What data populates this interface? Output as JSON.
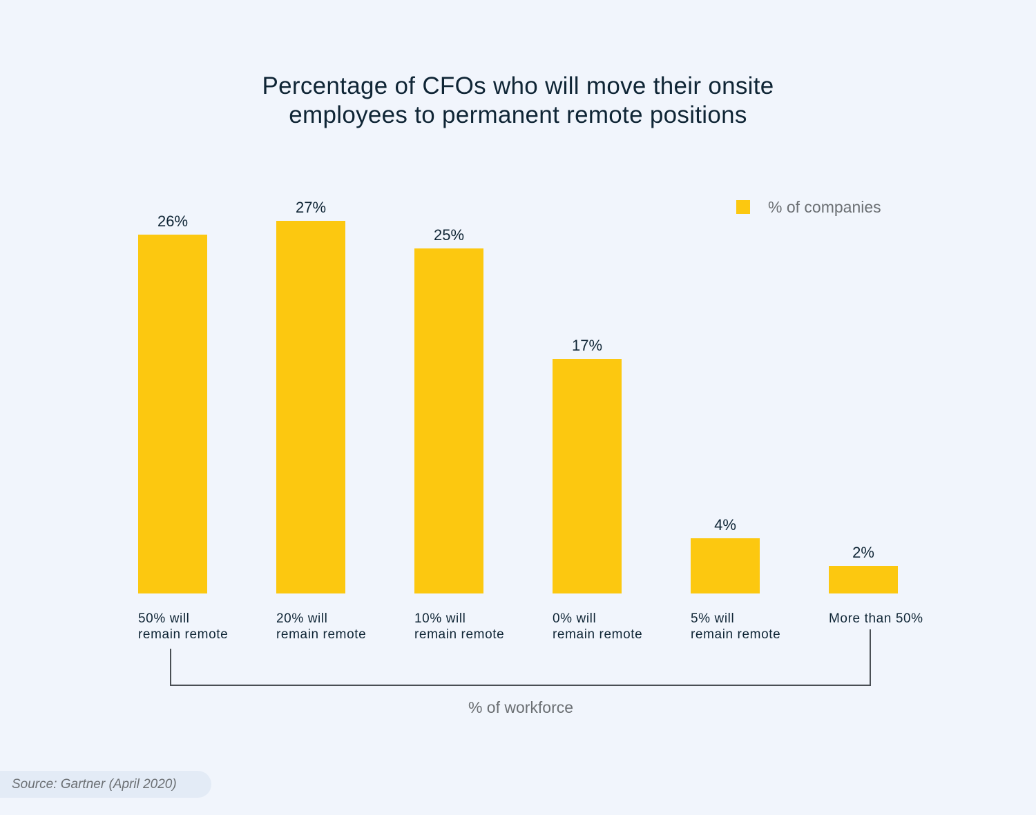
{
  "chart_data": {
    "type": "bar",
    "title": [
      "Percentage of CFOs who will move their onsite",
      "employees to permanent remote positions"
    ],
    "categories": [
      [
        "50% will",
        "remain remote"
      ],
      [
        "20% will",
        "remain remote"
      ],
      [
        "10% will",
        "remain remote"
      ],
      [
        "0% will",
        "remain remote"
      ],
      [
        "5% will",
        "remain remote"
      ],
      [
        "More than 50%"
      ]
    ],
    "series": [
      {
        "name": "% of companies",
        "values": [
          26,
          27,
          25,
          17,
          4,
          2
        ],
        "labels": [
          "26%",
          "27%",
          "25%",
          "17%",
          "4%",
          "2%"
        ]
      }
    ],
    "xlabel": "% of workforce",
    "ylabel": "",
    "ylim": [
      0,
      27
    ],
    "grid": false,
    "legend": "top-right",
    "colors": {
      "bar": "#fcc810",
      "text": "#0f2535",
      "muted": "#6b6f73",
      "bracket": "#4a4f54"
    }
  },
  "source": "Source: Gartner (April 2020)"
}
